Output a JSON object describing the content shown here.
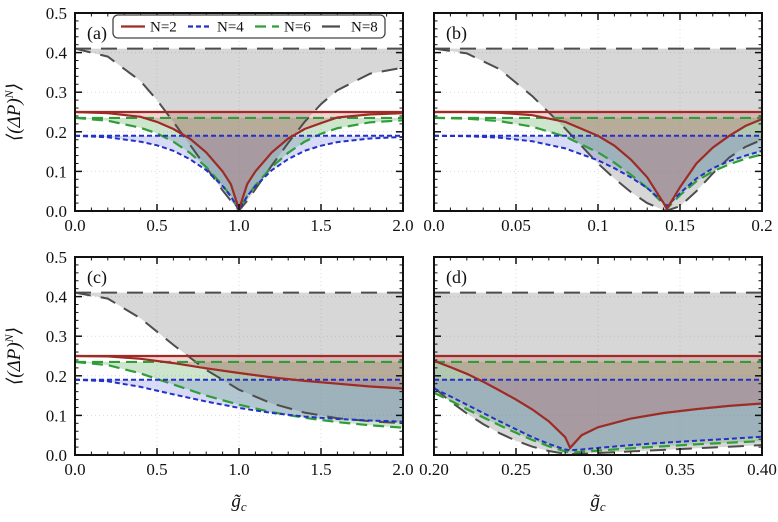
{
  "figure": {
    "description": "Four-panel line figure of moment variance vs critical coupling",
    "panel_letters": [
      "(a)",
      "(b)",
      "(c)",
      "(d)"
    ]
  },
  "chart_data": {
    "type": "line",
    "title": "",
    "ylabel": "⟨(ΔP)^N⟩",
    "xlabel": "g̃_c",
    "ylabel_parts": {
      "pre": "⟨(ΔP)",
      "sup": "N",
      "post": "⟩"
    },
    "xlabel_parts": {
      "main": "g̃",
      "sub": "c"
    },
    "yticks": [
      0,
      0.1,
      0.2,
      0.3,
      0.4,
      0.5
    ],
    "ytick_labels": [
      "0.0",
      "0.1",
      "0.2",
      "0.3",
      "0.4",
      "0.5"
    ],
    "y_minor_per_major": 4,
    "legend": {
      "position": "top-inside-panel-a",
      "items": [
        {
          "label": "N=2",
          "series": "N=2"
        },
        {
          "label": "N=4",
          "series": "N=4"
        },
        {
          "label": "N=6",
          "series": "N=6"
        },
        {
          "label": "N=8",
          "series": "N=8"
        }
      ]
    },
    "styles": {
      "N=2": {
        "color": "#9e2b25",
        "dash": "",
        "fill": "rgba(205,85,85,0.25)",
        "width": 2.2
      },
      "N=4": {
        "color": "#2430c8",
        "dash": "5 3",
        "fill": "rgba(100,110,220,0.25)",
        "width": 2
      },
      "N=6": {
        "color": "#2f9e38",
        "dash": "11 6",
        "fill": "rgba(90,170,90,0.30)",
        "width": 2.2
      },
      "N=8": {
        "color": "#4d4d4d",
        "dash": "16 10",
        "fill": "rgba(130,130,130,0.32)",
        "width": 2
      }
    },
    "panels": [
      {
        "id": "a",
        "label": "(a)",
        "xlim": [
          0,
          2
        ],
        "ylim": [
          0,
          0.5
        ],
        "xticks": [
          0,
          0.5,
          1.0,
          1.5,
          2.0
        ],
        "xtick_labels": [
          "0.0",
          "0.5",
          "1.0",
          "1.5",
          "2.0"
        ],
        "x_minor_per_major": 4,
        "show_ytick_labels": true,
        "show_ylabel": true,
        "show_xlabel": false,
        "show_legend": true,
        "series": [
          {
            "name": "N=2",
            "flat": 0.25,
            "x": [
              0,
              0.2,
              0.4,
              0.5,
              0.6,
              0.7,
              0.8,
              0.9,
              0.95,
              1.0,
              1.05,
              1.1,
              1.2,
              1.3,
              1.4,
              1.5,
              1.6,
              1.8,
              2.0
            ],
            "y": [
              0.25,
              0.247,
              0.238,
              0.225,
              0.207,
              0.183,
              0.148,
              0.1,
              0.068,
              0.004,
              0.068,
              0.1,
              0.148,
              0.183,
              0.207,
              0.222,
              0.236,
              0.244,
              0.247
            ]
          },
          {
            "name": "N=4",
            "flat": 0.19,
            "x": [
              0,
              0.2,
              0.4,
              0.5,
              0.6,
              0.7,
              0.8,
              0.9,
              0.95,
              1.0,
              1.05,
              1.1,
              1.2,
              1.3,
              1.4,
              1.5,
              1.6,
              1.8,
              2.0
            ],
            "y": [
              0.19,
              0.186,
              0.175,
              0.166,
              0.152,
              0.131,
              0.103,
              0.063,
              0.037,
              0.003,
              0.037,
              0.063,
              0.103,
              0.131,
              0.152,
              0.165,
              0.174,
              0.183,
              0.187
            ]
          },
          {
            "name": "N=6",
            "flat": 0.235,
            "x": [
              0,
              0.2,
              0.4,
              0.5,
              0.6,
              0.7,
              0.8,
              0.9,
              0.95,
              1.0,
              1.05,
              1.1,
              1.2,
              1.3,
              1.4,
              1.5,
              1.6,
              1.8,
              2.0
            ],
            "y": [
              0.235,
              0.228,
              0.21,
              0.196,
              0.175,
              0.147,
              0.111,
              0.065,
              0.037,
              0.002,
              0.037,
              0.065,
              0.111,
              0.147,
              0.175,
              0.195,
              0.209,
              0.224,
              0.229
            ]
          },
          {
            "name": "N=8",
            "flat": 0.41,
            "x": [
              0,
              0.2,
              0.4,
              0.5,
              0.6,
              0.7,
              0.8,
              0.9,
              0.95,
              1.0,
              1.05,
              1.1,
              1.2,
              1.3,
              1.4,
              1.5,
              1.6,
              1.8,
              2.0
            ],
            "y": [
              0.41,
              0.39,
              0.328,
              0.28,
              0.225,
              0.168,
              0.11,
              0.052,
              0.026,
              0.001,
              0.026,
              0.055,
              0.115,
              0.172,
              0.225,
              0.27,
              0.305,
              0.347,
              0.362
            ]
          }
        ]
      },
      {
        "id": "b",
        "label": "(b)",
        "xlim": [
          0,
          0.2
        ],
        "ylim": [
          0,
          0.5
        ],
        "xticks": [
          0,
          0.05,
          0.1,
          0.15,
          0.2
        ],
        "xtick_labels": [
          "0.0",
          "0.05",
          "0.1",
          "0.15",
          "0.2"
        ],
        "x_minor_per_major": 4,
        "show_ytick_labels": false,
        "show_ylabel": false,
        "show_xlabel": false,
        "show_legend": false,
        "series": [
          {
            "name": "N=2",
            "flat": 0.25,
            "x": [
              0,
              0.02,
              0.04,
              0.06,
              0.08,
              0.1,
              0.11,
              0.12,
              0.13,
              0.14,
              0.142,
              0.15,
              0.16,
              0.17,
              0.18,
              0.19,
              0.2
            ],
            "y": [
              0.25,
              0.25,
              0.248,
              0.242,
              0.225,
              0.19,
              0.165,
              0.13,
              0.085,
              0.02,
              0.005,
              0.06,
              0.12,
              0.16,
              0.19,
              0.215,
              0.232
            ]
          },
          {
            "name": "N=4",
            "flat": 0.19,
            "x": [
              0,
              0.02,
              0.04,
              0.06,
              0.08,
              0.1,
              0.11,
              0.12,
              0.13,
              0.14,
              0.142,
              0.15,
              0.16,
              0.17,
              0.18,
              0.19,
              0.2
            ],
            "y": [
              0.19,
              0.189,
              0.185,
              0.176,
              0.158,
              0.128,
              0.108,
              0.085,
              0.058,
              0.022,
              0.012,
              0.045,
              0.082,
              0.108,
              0.126,
              0.14,
              0.152
            ]
          },
          {
            "name": "N=6",
            "flat": 0.235,
            "x": [
              0,
              0.02,
              0.04,
              0.06,
              0.08,
              0.1,
              0.11,
              0.12,
              0.13,
              0.14,
              0.142,
              0.15,
              0.16,
              0.17,
              0.18,
              0.19,
              0.2
            ],
            "y": [
              0.235,
              0.233,
              0.227,
              0.213,
              0.188,
              0.148,
              0.122,
              0.092,
              0.058,
              0.018,
              0.006,
              0.04,
              0.075,
              0.1,
              0.118,
              0.132,
              0.143
            ]
          },
          {
            "name": "N=8",
            "flat": 0.41,
            "x": [
              0,
              0.02,
              0.04,
              0.06,
              0.08,
              0.1,
              0.11,
              0.12,
              0.13,
              0.14,
              0.142,
              0.15,
              0.16,
              0.17,
              0.18,
              0.19,
              0.2
            ],
            "y": [
              0.41,
              0.398,
              0.358,
              0.29,
              0.208,
              0.12,
              0.082,
              0.048,
              0.02,
              0.002,
              0.001,
              0.012,
              0.05,
              0.095,
              0.135,
              0.162,
              0.18
            ]
          }
        ]
      },
      {
        "id": "c",
        "label": "(c)",
        "xlim": [
          0,
          2
        ],
        "ylim": [
          0,
          0.5
        ],
        "xticks": [
          0,
          0.5,
          1.0,
          1.5,
          2.0
        ],
        "xtick_labels": [
          "0.0",
          "0.5",
          "1.0",
          "1.5",
          "2.0"
        ],
        "x_minor_per_major": 4,
        "show_ytick_labels": true,
        "show_ylabel": true,
        "show_xlabel": true,
        "show_legend": false,
        "series": [
          {
            "name": "N=2",
            "flat": 0.25,
            "x": [
              0,
              0.2,
              0.4,
              0.6,
              0.8,
              1.0,
              1.2,
              1.4,
              1.6,
              1.8,
              2.0
            ],
            "y": [
              0.25,
              0.249,
              0.243,
              0.232,
              0.219,
              0.207,
              0.196,
              0.187,
              0.18,
              0.173,
              0.168
            ]
          },
          {
            "name": "N=4",
            "flat": 0.19,
            "x": [
              0,
              0.2,
              0.4,
              0.6,
              0.8,
              1.0,
              1.2,
              1.4,
              1.6,
              1.8,
              2.0
            ],
            "y": [
              0.19,
              0.186,
              0.172,
              0.153,
              0.135,
              0.119,
              0.106,
              0.097,
              0.091,
              0.087,
              0.084
            ]
          },
          {
            "name": "N=6",
            "flat": 0.235,
            "x": [
              0,
              0.2,
              0.4,
              0.6,
              0.8,
              1.0,
              1.2,
              1.4,
              1.6,
              1.8,
              2.0
            ],
            "y": [
              0.235,
              0.227,
              0.206,
              0.178,
              0.15,
              0.127,
              0.108,
              0.094,
              0.083,
              0.075,
              0.069
            ]
          },
          {
            "name": "N=8",
            "flat": 0.41,
            "x": [
              0,
              0.2,
              0.4,
              0.6,
              0.8,
              1.0,
              1.2,
              1.4,
              1.6,
              1.8,
              2.0
            ],
            "y": [
              0.41,
              0.395,
              0.345,
              0.278,
              0.215,
              0.165,
              0.13,
              0.107,
              0.093,
              0.085,
              0.08
            ]
          }
        ]
      },
      {
        "id": "d",
        "label": "(d)",
        "xlim": [
          0.2,
          0.4
        ],
        "ylim": [
          0,
          0.5
        ],
        "xticks": [
          0.2,
          0.25,
          0.3,
          0.35,
          0.4
        ],
        "xtick_labels": [
          "0.20",
          "0.25",
          "0.30",
          "0.35",
          "0.40"
        ],
        "x_minor_per_major": 4,
        "show_ytick_labels": false,
        "show_ylabel": false,
        "show_xlabel": true,
        "show_legend": false,
        "series": [
          {
            "name": "N=2",
            "flat": 0.25,
            "x": [
              0.2,
              0.21,
              0.22,
              0.23,
              0.24,
              0.25,
              0.26,
              0.27,
              0.28,
              0.283,
              0.29,
              0.3,
              0.32,
              0.34,
              0.36,
              0.38,
              0.4
            ],
            "y": [
              0.238,
              0.222,
              0.205,
              0.185,
              0.163,
              0.14,
              0.115,
              0.085,
              0.045,
              0.018,
              0.05,
              0.07,
              0.092,
              0.106,
              0.116,
              0.124,
              0.13
            ]
          },
          {
            "name": "N=4",
            "flat": 0.19,
            "x": [
              0.2,
              0.21,
              0.22,
              0.23,
              0.24,
              0.25,
              0.26,
              0.27,
              0.28,
              0.283,
              0.29,
              0.3,
              0.32,
              0.34,
              0.36,
              0.38,
              0.4
            ],
            "y": [
              0.168,
              0.148,
              0.127,
              0.106,
              0.085,
              0.065,
              0.045,
              0.028,
              0.014,
              0.012,
              0.014,
              0.018,
              0.025,
              0.031,
              0.036,
              0.041,
              0.046
            ]
          },
          {
            "name": "N=6",
            "flat": 0.235,
            "x": [
              0.2,
              0.21,
              0.22,
              0.23,
              0.24,
              0.25,
              0.26,
              0.27,
              0.28,
              0.283,
              0.29,
              0.3,
              0.32,
              0.34,
              0.36,
              0.38,
              0.4
            ],
            "y": [
              0.157,
              0.137,
              0.116,
              0.095,
              0.075,
              0.056,
              0.038,
              0.022,
              0.009,
              0.006,
              0.008,
              0.011,
              0.017,
              0.022,
              0.027,
              0.031,
              0.035
            ]
          },
          {
            "name": "N=8",
            "flat": 0.41,
            "x": [
              0.2,
              0.21,
              0.22,
              0.23,
              0.24,
              0.25,
              0.26,
              0.27,
              0.28,
              0.283,
              0.29,
              0.3,
              0.32,
              0.34,
              0.36,
              0.38,
              0.4
            ],
            "y": [
              0.17,
              0.135,
              0.105,
              0.078,
              0.055,
              0.036,
              0.021,
              0.01,
              0.003,
              0.002,
              0.003,
              0.005,
              0.009,
              0.013,
              0.017,
              0.021,
              0.025
            ]
          }
        ]
      }
    ]
  }
}
